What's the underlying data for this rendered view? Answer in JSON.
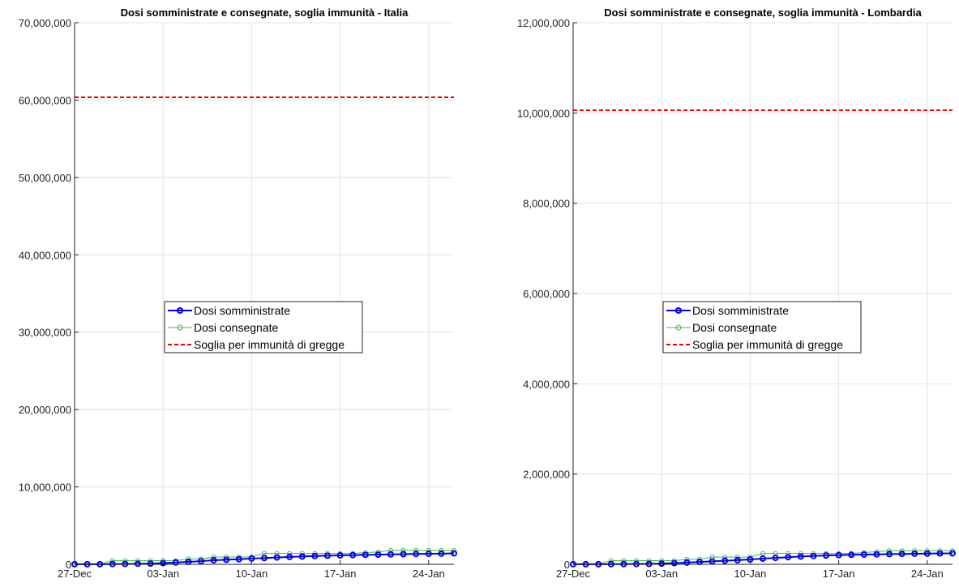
{
  "chart_data": [
    {
      "type": "line",
      "title": "Dosi somministrate e consegnate, soglia immunità - Italia",
      "xlabel": "",
      "ylabel": "",
      "grid": true,
      "legend_position": "center",
      "ylim": [
        0,
        70000000
      ],
      "yticks": [
        "0",
        "10,000,000",
        "20,000,000",
        "30,000,000",
        "40,000,000",
        "50,000,000",
        "60,000,000",
        "70,000,000"
      ],
      "ytick_values": [
        0,
        10000000,
        20000000,
        30000000,
        40000000,
        50000000,
        60000000,
        70000000
      ],
      "xlim": [
        0,
        30
      ],
      "xticks": [
        "27-Dec",
        "03-Jan",
        "10-Jan",
        "17-Jan",
        "24-Jan"
      ],
      "xtick_values": [
        0,
        7,
        14,
        21,
        28
      ],
      "x": [
        0,
        1,
        2,
        3,
        4,
        5,
        6,
        7,
        8,
        9,
        10,
        11,
        12,
        13,
        14,
        15,
        16,
        17,
        18,
        19,
        20,
        21,
        22,
        23,
        24,
        25,
        26,
        27,
        28,
        29,
        30
      ],
      "series": [
        {
          "name": "Dosi somministrate",
          "color": "#0000ee",
          "marker": "circle",
          "values": [
            8000,
            9000,
            12000,
            30000,
            45000,
            70000,
            90000,
            150000,
            230000,
            320000,
            410000,
            520000,
            590000,
            660000,
            740000,
            810000,
            880000,
            950000,
            1010000,
            1070000,
            1110000,
            1150000,
            1190000,
            1220000,
            1250000,
            1280000,
            1310000,
            1340000,
            1360000,
            1380000,
            1420000
          ]
        },
        {
          "name": "Dosi consegnate",
          "color": "#44bb44",
          "marker": "circle-open",
          "values": [
            9000,
            9000,
            9000,
            470000,
            470000,
            470000,
            470000,
            470000,
            470000,
            700000,
            700000,
            940000,
            940000,
            940000,
            940000,
            1400000,
            1400000,
            1400000,
            1400000,
            1400000,
            1400000,
            1400000,
            1400000,
            1500000,
            1600000,
            1800000,
            1800000,
            1800000,
            1800000,
            1800000,
            1800000
          ]
        },
        {
          "name": "Soglia per immunità di gregge",
          "color": "#ee0000",
          "dashed": true,
          "constant": 60360000
        }
      ]
    },
    {
      "type": "line",
      "title": "Dosi somministrate e consegnate, soglia immunità - Lombardia",
      "xlabel": "",
      "ylabel": "",
      "grid": true,
      "legend_position": "center",
      "ylim": [
        0,
        12000000
      ],
      "yticks": [
        "0",
        "2,000,000",
        "4,000,000",
        "6,000,000",
        "8,000,000",
        "10,000,000",
        "12,000,000"
      ],
      "ytick_values": [
        0,
        2000000,
        4000000,
        6000000,
        8000000,
        10000000,
        12000000
      ],
      "xlim": [
        0,
        30
      ],
      "xticks": [
        "27-Dec",
        "03-Jan",
        "10-Jan",
        "17-Jan",
        "24-Jan"
      ],
      "xtick_values": [
        0,
        7,
        14,
        21,
        28
      ],
      "x": [
        0,
        1,
        2,
        3,
        4,
        5,
        6,
        7,
        8,
        9,
        10,
        11,
        12,
        13,
        14,
        15,
        16,
        17,
        18,
        19,
        20,
        21,
        22,
        23,
        24,
        25,
        26,
        27,
        28,
        29,
        30
      ],
      "series": [
        {
          "name": "Dosi somministrate",
          "color": "#0000ee",
          "marker": "circle",
          "values": [
            1500,
            1600,
            2000,
            3000,
            4000,
            6000,
            9000,
            15000,
            25000,
            38000,
            52000,
            66000,
            79000,
            92000,
            108000,
            125000,
            142000,
            158000,
            172000,
            185000,
            195000,
            203000,
            210000,
            216000,
            221000,
            226000,
            230000,
            234000,
            237000,
            240000,
            243000
          ]
        },
        {
          "name": "Dosi consegnate",
          "color": "#44bb44",
          "marker": "circle-open",
          "values": [
            1600,
            1600,
            1600,
            80000,
            80000,
            80000,
            80000,
            80000,
            80000,
            110000,
            110000,
            160000,
            160000,
            160000,
            160000,
            240000,
            240000,
            240000,
            240000,
            240000,
            240000,
            240000,
            240000,
            260000,
            280000,
            300000,
            300000,
            300000,
            300000,
            300000,
            300000
          ]
        },
        {
          "name": "Soglia per immunità di gregge",
          "color": "#ee0000",
          "dashed": true,
          "constant": 10060000
        }
      ]
    }
  ]
}
